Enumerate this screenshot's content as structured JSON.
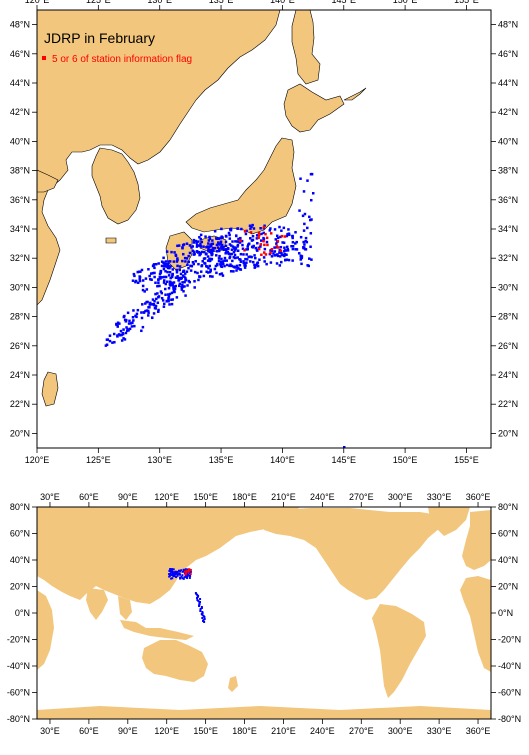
{
  "title": "JDRP in February",
  "legend": {
    "label": "5 or 6 of station information flag",
    "color": "#ff0000"
  },
  "colors": {
    "land": "#f3c67d",
    "ocean": "#ffffff",
    "station": "#0000ff",
    "flagged": "#ff0000",
    "coast": "#000000"
  },
  "regional_map": {
    "lon_ticks": [
      "120°E",
      "125°E",
      "130°E",
      "135°E",
      "140°E",
      "145°E",
      "150°E",
      "155°E"
    ],
    "lat_ticks": [
      "20°N",
      "22°N",
      "24°N",
      "26°N",
      "28°N",
      "30°N",
      "32°N",
      "34°N",
      "36°N",
      "38°N",
      "40°N",
      "42°N",
      "44°N",
      "46°N",
      "48°N"
    ],
    "lon_range": [
      120,
      157
    ],
    "lat_range": [
      19,
      49
    ]
  },
  "global_map": {
    "lon_ticks": [
      "30°E",
      "60°E",
      "90°E",
      "120°E",
      "150°E",
      "180°E",
      "210°E",
      "240°E",
      "270°E",
      "300°E",
      "330°E",
      "360°E"
    ],
    "lat_ticks": [
      "-80°N",
      "-60°N",
      "-40°N",
      "-20°N",
      "0°N",
      "20°N",
      "40°N",
      "60°N",
      "80°N"
    ],
    "lon_range": [
      20,
      370
    ],
    "lat_range": [
      -80,
      80
    ]
  }
}
